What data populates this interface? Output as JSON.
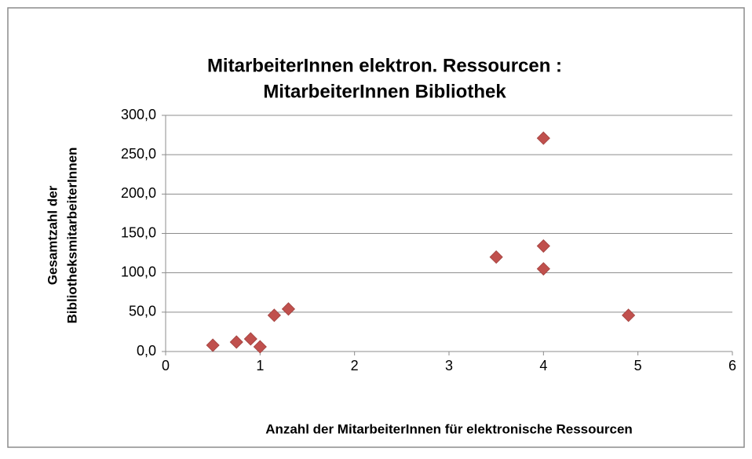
{
  "chart_data": {
    "type": "scatter",
    "title": [
      "MitarbeiterInnen elektron. Ressourcen :",
      "MitarbeiterInnen Bibliothek"
    ],
    "x_label": "Anzahl der MitarbeiterInnen für elektronische Ressourcen",
    "y_label": [
      "Gesamtzahl der",
      "BibliotheksmitarbeiterInnen"
    ],
    "series": [
      {
        "color": "#c0504d",
        "x": [
          0.5,
          0.75,
          0.9,
          1.0,
          1.15,
          1.3,
          3.5,
          4,
          4,
          4,
          4.9
        ],
        "values": [
          8,
          12,
          16,
          6,
          46,
          54,
          120,
          134,
          105,
          271,
          46
        ]
      }
    ],
    "xlim": [
      0,
      6
    ],
    "xticks": [
      0,
      1,
      2,
      3,
      4,
      5,
      6
    ],
    "ylim": [
      0,
      300
    ],
    "yticks": [
      {
        "value": 0,
        "label": "0,0"
      },
      {
        "value": 50,
        "label": "50,0"
      },
      {
        "value": 100,
        "label": "100,0"
      },
      {
        "value": 150,
        "label": "150,0"
      },
      {
        "value": 200,
        "label": "200,0"
      },
      {
        "value": 250,
        "label": "250,0"
      },
      {
        "value": 300,
        "label": "300,0"
      }
    ],
    "grid": true
  }
}
